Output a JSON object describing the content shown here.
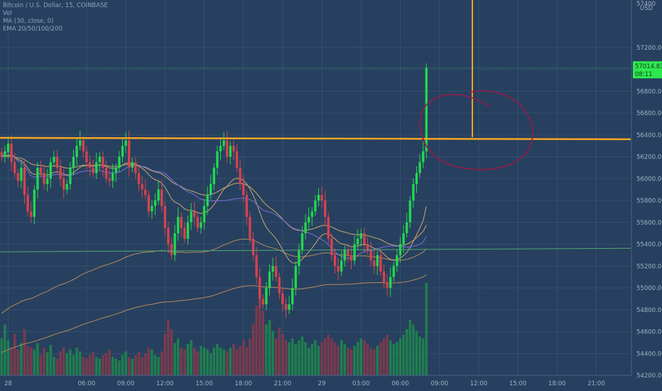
{
  "legend": {
    "symbol": "Bitcoin / U.S. Dollar, 15, COINBASE",
    "volume": "Vol",
    "ma": "MA (30, close, 0)",
    "ema": "EMA 20/50/100/200"
  },
  "price_axis": {
    "currency": "USD",
    "top_partial": "57400",
    "current_price": "57014.83",
    "countdown": "08:11"
  },
  "colors": {
    "background": "#27405f",
    "up": "#22d94e",
    "down": "#d8424e",
    "volume_up": "#1e8b4b",
    "volume_down": "#8a3a4a",
    "resistance": "#f5a524",
    "annotation_circle": "#8c1e4e",
    "ema_fast": "#c9a96e",
    "ema_slow": "#b88a5a",
    "ma": "#7b6fd6",
    "horizontal_green": "#4fa874"
  },
  "chart_data": {
    "type": "candlestick",
    "symbol": "Bitcoin / U.S. Dollar",
    "interval": "15",
    "exchange": "COINBASE",
    "yaxis": {
      "range": [
        54200,
        57400
      ],
      "ticks": [
        "57200.00",
        "57000.00",
        "56800.00",
        "56600.00",
        "56400.00",
        "56200.00",
        "56000.00",
        "55800.00",
        "55600.00",
        "55400.00",
        "55200.00",
        "55000.00",
        "54800.00",
        "54600.00",
        "54400.00",
        "54200.00"
      ]
    },
    "xaxis": {
      "ticks": [
        "28",
        "06:00",
        "09:00",
        "12:00",
        "15:00",
        "18:00",
        "21:00",
        "29",
        "03:00",
        "06:00",
        "09:00",
        "12:00",
        "15:00",
        "18:00",
        "21:00"
      ],
      "tick_index": [
        2,
        26,
        38,
        50,
        62,
        74,
        86,
        98,
        110,
        122,
        134,
        146,
        158,
        170,
        182
      ]
    },
    "resistance_level": 56360,
    "support_level": 55330,
    "last_price": 57014.83,
    "annotations": [
      {
        "type": "horizontal_line",
        "price": 56360
      },
      {
        "type": "vertical_line",
        "at_index": 140
      },
      {
        "type": "circle",
        "center_index": 139,
        "center_price": 56200
      }
    ],
    "closes": [
      56200,
      56250,
      56320,
      56150,
      56050,
      55980,
      56100,
      55850,
      55700,
      55650,
      55900,
      56100,
      56050,
      55950,
      56000,
      56150,
      56200,
      56100,
      56000,
      55900,
      55950,
      56100,
      56200,
      56300,
      56350,
      56250,
      56150,
      56100,
      56050,
      56150,
      56200,
      56100,
      56000,
      55980,
      56050,
      56100,
      56200,
      56300,
      56350,
      56100,
      56150,
      56050,
      55950,
      55900,
      55850,
      55700,
      55750,
      55800,
      55900,
      55750,
      55550,
      55400,
      55300,
      55500,
      55650,
      55550,
      55450,
      55600,
      55700,
      55650,
      55550,
      55600,
      55750,
      55850,
      55950,
      56100,
      56250,
      56300,
      56350,
      56200,
      56300,
      56250,
      56100,
      55950,
      55850,
      55650,
      55450,
      55300,
      55100,
      54900,
      54850,
      55000,
      55150,
      55200,
      55100,
      54950,
      54850,
      54800,
      54850,
      55000,
      55200,
      55350,
      55500,
      55600,
      55650,
      55700,
      55800,
      55850,
      55800,
      55650,
      55450,
      55300,
      55200,
      55150,
      55250,
      55350,
      55300,
      55250,
      55400,
      55450,
      55500,
      55400,
      55350,
      55250,
      55200,
      55300,
      55150,
      55050,
      55000,
      55100,
      55200,
      55300,
      55400,
      55500,
      55600,
      55800,
      55950,
      56050,
      56150,
      56250,
      57014.83
    ],
    "volume_scale": [
      40,
      55,
      38,
      30,
      45,
      28,
      35,
      50,
      32,
      30,
      28,
      35,
      22,
      30,
      25,
      33,
      20,
      18,
      26,
      30,
      24,
      28,
      22,
      30,
      26,
      20,
      18,
      22,
      25,
      20,
      18,
      22,
      24,
      28,
      20,
      18,
      16,
      22,
      26,
      20,
      18,
      22,
      25,
      20,
      24,
      30,
      28,
      22,
      20,
      26,
      45,
      60,
      50,
      35,
      40,
      30,
      28,
      34,
      38,
      30,
      26,
      32,
      30,
      28,
      24,
      30,
      34,
      30,
      28,
      26,
      30,
      34,
      28,
      32,
      38,
      30,
      40,
      55,
      75,
      95,
      70,
      55,
      60,
      48,
      40,
      52,
      45,
      38,
      36,
      40,
      34,
      38,
      42,
      36,
      30,
      34,
      38,
      32,
      36,
      40,
      44,
      40,
      36,
      32,
      38,
      34,
      30,
      28,
      32,
      36,
      40,
      38,
      34,
      30,
      28,
      32,
      36,
      40,
      44,
      38,
      34,
      36,
      40,
      44,
      50,
      60,
      55,
      48,
      42,
      40,
      100
    ]
  }
}
